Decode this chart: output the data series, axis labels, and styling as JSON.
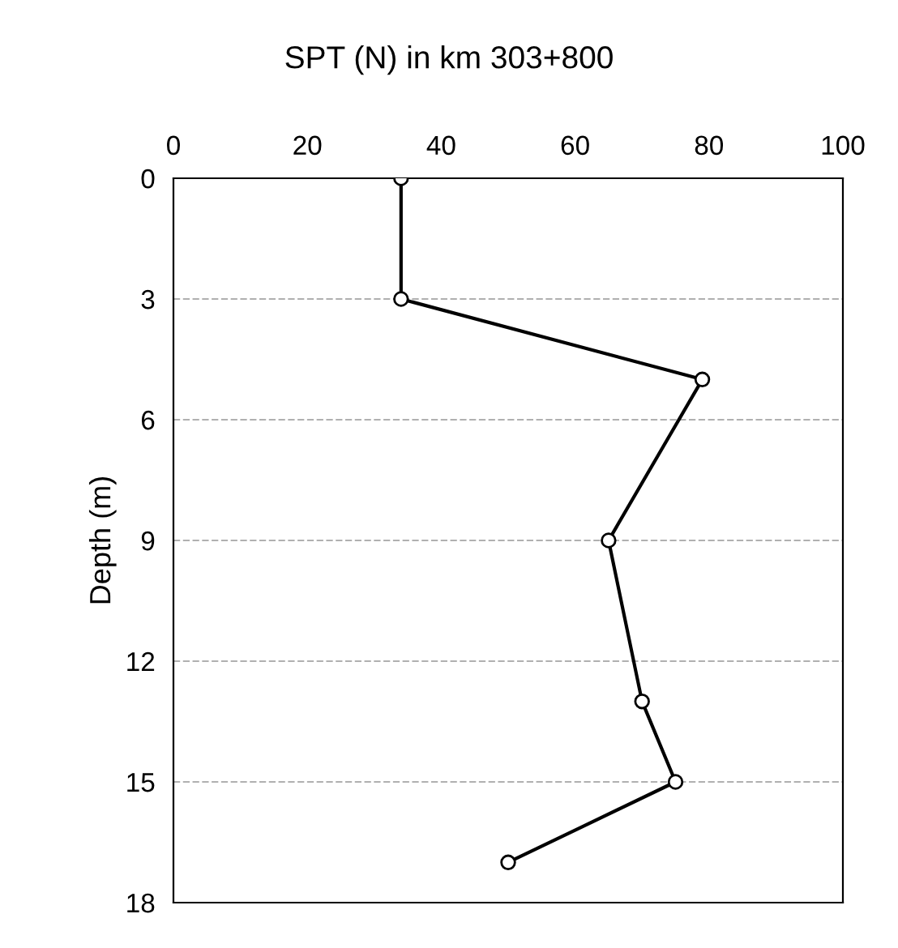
{
  "chart_data": {
    "type": "line",
    "title": "SPT (N) in km 303+800",
    "ylabel": "Depth (m)",
    "series": [
      {
        "color": "#000000",
        "x": [
          34,
          34,
          79,
          65,
          70,
          75,
          50
        ],
        "values": [
          0,
          3,
          5,
          9,
          13,
          15,
          17
        ]
      }
    ],
    "xlim": [
      0,
      100
    ],
    "xticks": [
      0,
      20,
      40,
      60,
      80,
      100
    ],
    "ylim": [
      18,
      0
    ],
    "yticks": [
      0,
      3,
      6,
      9,
      12,
      15,
      18
    ],
    "grid": "y",
    "marker": "circle",
    "line_style": "solid",
    "legend": false
  }
}
